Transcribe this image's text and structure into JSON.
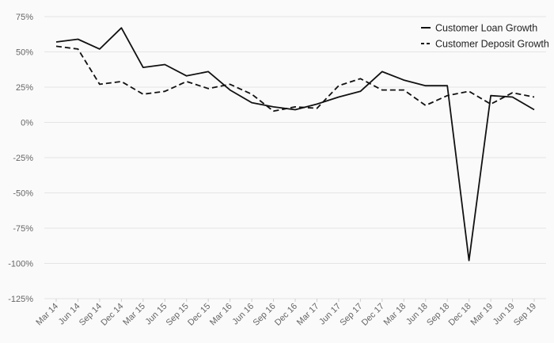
{
  "chart_data": {
    "type": "line",
    "title": "",
    "xlabel": "",
    "ylabel": "",
    "x": [
      "Mar 14",
      "Jun 14",
      "Sep 14",
      "Dec 14",
      "Mar 15",
      "Jun 15",
      "Sep 15",
      "Dec 15",
      "Mar 16",
      "Jun 16",
      "Sep 16",
      "Dec 16",
      "Mar 17",
      "Jun 17",
      "Sep 17",
      "Dec 17",
      "Mar 18",
      "Jun 18",
      "Sep 18",
      "Dec 18",
      "Mar 19",
      "Jun 19",
      "Sep 19"
    ],
    "yticks": [
      "75%",
      "50%",
      "25%",
      "0%",
      "-25%",
      "-50%",
      "-75%",
      "-100%",
      "-125%"
    ],
    "ylim": [
      -125,
      75
    ],
    "grid": true,
    "legend_position": "top-right",
    "series": [
      {
        "name": "Customer Loan Growth",
        "style": "solid",
        "color": "#111111",
        "values": [
          57,
          59,
          52,
          67,
          39,
          41,
          33,
          36,
          23,
          14,
          11,
          9,
          13,
          18,
          22,
          36,
          30,
          26,
          26,
          -98,
          19,
          18,
          9
        ]
      },
      {
        "name": "Customer Deposit Growth",
        "style": "dashed",
        "color": "#111111",
        "values": [
          54,
          52,
          27,
          29,
          20,
          22,
          29,
          24,
          27,
          20,
          8,
          11,
          10,
          26,
          31,
          23,
          23,
          12,
          19,
          22,
          13,
          21,
          18
        ]
      }
    ]
  }
}
